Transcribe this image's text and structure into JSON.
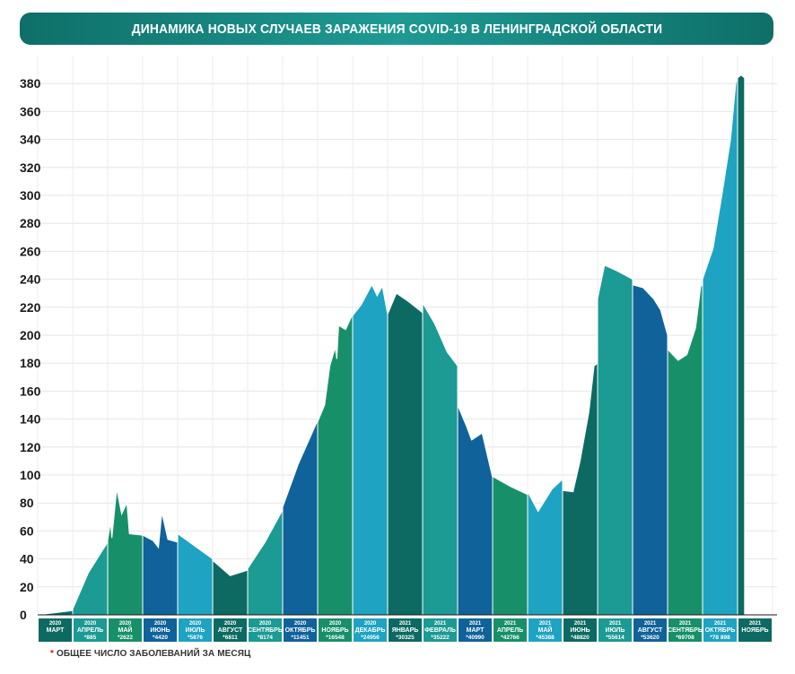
{
  "title": "ДИНАМИКА НОВЫХ СЛУЧАЕВ ЗАРАЖЕНИЯ COVID-19 В ЛЕНИНГРАДСКОЙ ОБЛАСТИ",
  "footnote": {
    "marker": "*",
    "text": "ОБЩЕЕ ЧИСЛО ЗАБОЛЕВАНИЙ ЗА МЕСЯЦ"
  },
  "chart_data": {
    "type": "area",
    "ylim": [
      0,
      400
    ],
    "yticks": [
      0,
      20,
      40,
      60,
      80,
      100,
      120,
      140,
      160,
      180,
      200,
      220,
      240,
      260,
      280,
      300,
      320,
      340,
      360,
      380
    ],
    "grid": true,
    "months": [
      {
        "year": "2020",
        "month": "МАРТ",
        "total": "",
        "color": "#0c6a63",
        "points": [
          [
            0,
            0
          ],
          [
            1,
            3
          ]
        ]
      },
      {
        "year": "2020",
        "month": "АПРЕЛЬ",
        "total": "*885",
        "color": "#1c9a94",
        "points": [
          [
            0,
            4
          ],
          [
            0.45,
            30
          ],
          [
            1,
            52
          ]
        ]
      },
      {
        "year": "2020",
        "month": "МАЙ",
        "total": "*2622",
        "color": "#17906a",
        "points": [
          [
            0,
            53
          ],
          [
            0.08,
            66
          ],
          [
            0.12,
            55
          ],
          [
            0.26,
            90
          ],
          [
            0.4,
            72
          ],
          [
            0.55,
            80
          ],
          [
            0.62,
            58
          ],
          [
            1,
            57
          ]
        ]
      },
      {
        "year": "2020",
        "month": "ИЮНЬ",
        "total": "*4420",
        "color": "#10629a",
        "points": [
          [
            0,
            57
          ],
          [
            0.3,
            53
          ],
          [
            0.45,
            48
          ],
          [
            0.55,
            73
          ],
          [
            0.72,
            54
          ],
          [
            1,
            52
          ]
        ]
      },
      {
        "year": "2020",
        "month": "ИЮЛЬ",
        "total": "*5876",
        "color": "#1ea3c2",
        "points": [
          [
            0,
            58
          ],
          [
            0.5,
            49
          ],
          [
            1,
            40
          ]
        ]
      },
      {
        "year": "2020",
        "month": "АВГУСТ",
        "total": "*6811",
        "color": "#0c6a63",
        "points": [
          [
            0,
            39
          ],
          [
            0.5,
            28
          ],
          [
            1,
            32
          ]
        ]
      },
      {
        "year": "2020",
        "month": "СЕНТЯБРЬ",
        "total": "*8174",
        "color": "#1c9a94",
        "points": [
          [
            0,
            33
          ],
          [
            0.5,
            52
          ],
          [
            1,
            75
          ]
        ]
      },
      {
        "year": "2020",
        "month": "ОКТЯБРЬ",
        "total": "*11451",
        "color": "#10629a",
        "points": [
          [
            0,
            77
          ],
          [
            0.45,
            108
          ],
          [
            1,
            139
          ]
        ]
      },
      {
        "year": "2020",
        "month": "НОЯБРЬ",
        "total": "*16548",
        "color": "#17906a",
        "points": [
          [
            0,
            138
          ],
          [
            0.2,
            150
          ],
          [
            0.35,
            178
          ],
          [
            0.5,
            191
          ],
          [
            0.55,
            183
          ],
          [
            0.6,
            207
          ],
          [
            0.8,
            204
          ],
          [
            1,
            215
          ]
        ]
      },
      {
        "year": "2020",
        "month": "ДЕКАБРЬ",
        "total": "*24956",
        "color": "#1ea3c2",
        "points": [
          [
            0,
            214
          ],
          [
            0.25,
            222
          ],
          [
            0.55,
            236
          ],
          [
            0.7,
            228
          ],
          [
            0.85,
            235
          ],
          [
            1,
            215
          ]
        ]
      },
      {
        "year": "2021",
        "month": "ЯНВАРЬ",
        "total": "*30325",
        "color": "#0c6a63",
        "points": [
          [
            0,
            215
          ],
          [
            0.25,
            230
          ],
          [
            0.6,
            224
          ],
          [
            1,
            216
          ]
        ]
      },
      {
        "year": "2021",
        "month": "ФЕВРАЛЬ",
        "total": "*35222",
        "color": "#1c9a94",
        "points": [
          [
            0,
            223
          ],
          [
            0.35,
            208
          ],
          [
            0.7,
            188
          ],
          [
            1,
            178
          ]
        ]
      },
      {
        "year": "2021",
        "month": "МАРТ",
        "total": "*40990",
        "color": "#10629a",
        "points": [
          [
            0,
            150
          ],
          [
            0.25,
            135
          ],
          [
            0.4,
            125
          ],
          [
            0.7,
            130
          ],
          [
            1,
            98
          ]
        ]
      },
      {
        "year": "2021",
        "month": "АПРЕЛЬ",
        "total": "*42766",
        "color": "#17906a",
        "points": [
          [
            0,
            99
          ],
          [
            0.5,
            92
          ],
          [
            1,
            86
          ]
        ]
      },
      {
        "year": "2021",
        "month": "МАЙ",
        "total": "*45388",
        "color": "#1ea3c2",
        "points": [
          [
            0,
            88
          ],
          [
            0.3,
            74
          ],
          [
            0.7,
            90
          ],
          [
            1,
            97
          ]
        ]
      },
      {
        "year": "2021",
        "month": "ИЮНЬ",
        "total": "*48820",
        "color": "#0c6a63",
        "points": [
          [
            0,
            89
          ],
          [
            0.3,
            88
          ],
          [
            0.5,
            110
          ],
          [
            0.75,
            145
          ],
          [
            0.9,
            178
          ],
          [
            1,
            180
          ]
        ]
      },
      {
        "year": "2021",
        "month": "ИЮЛЬ",
        "total": "*55614",
        "color": "#1c9a94",
        "points": [
          [
            0,
            226
          ],
          [
            0.2,
            250
          ],
          [
            0.55,
            246
          ],
          [
            1,
            240
          ]
        ]
      },
      {
        "year": "2021",
        "month": "АВГУСТ",
        "total": "*53620",
        "color": "#10629a",
        "points": [
          [
            0,
            236
          ],
          [
            0.3,
            234
          ],
          [
            0.6,
            226
          ],
          [
            0.8,
            218
          ],
          [
            1,
            200
          ]
        ]
      },
      {
        "year": "2021",
        "month": "СЕНТЯБРЬ",
        "total": "*69708",
        "color": "#17906a",
        "points": [
          [
            0,
            190
          ],
          [
            0.3,
            182
          ],
          [
            0.55,
            186
          ],
          [
            0.8,
            205
          ],
          [
            0.95,
            235
          ],
          [
            1,
            236
          ]
        ]
      },
      {
        "year": "2021",
        "month": "ОКТЯБРЬ",
        "total": "*78 898",
        "color": "#1ea3c2",
        "points": [
          [
            0,
            240
          ],
          [
            0.3,
            262
          ],
          [
            0.55,
            300
          ],
          [
            0.8,
            340
          ],
          [
            0.95,
            380
          ],
          [
            1,
            384
          ]
        ]
      },
      {
        "year": "2021",
        "month": "НОЯБРЬ",
        "total": "",
        "color": "#0c6a63",
        "points": [
          [
            0,
            384
          ],
          [
            0.1,
            386
          ],
          [
            0.2,
            384
          ]
        ]
      }
    ]
  }
}
